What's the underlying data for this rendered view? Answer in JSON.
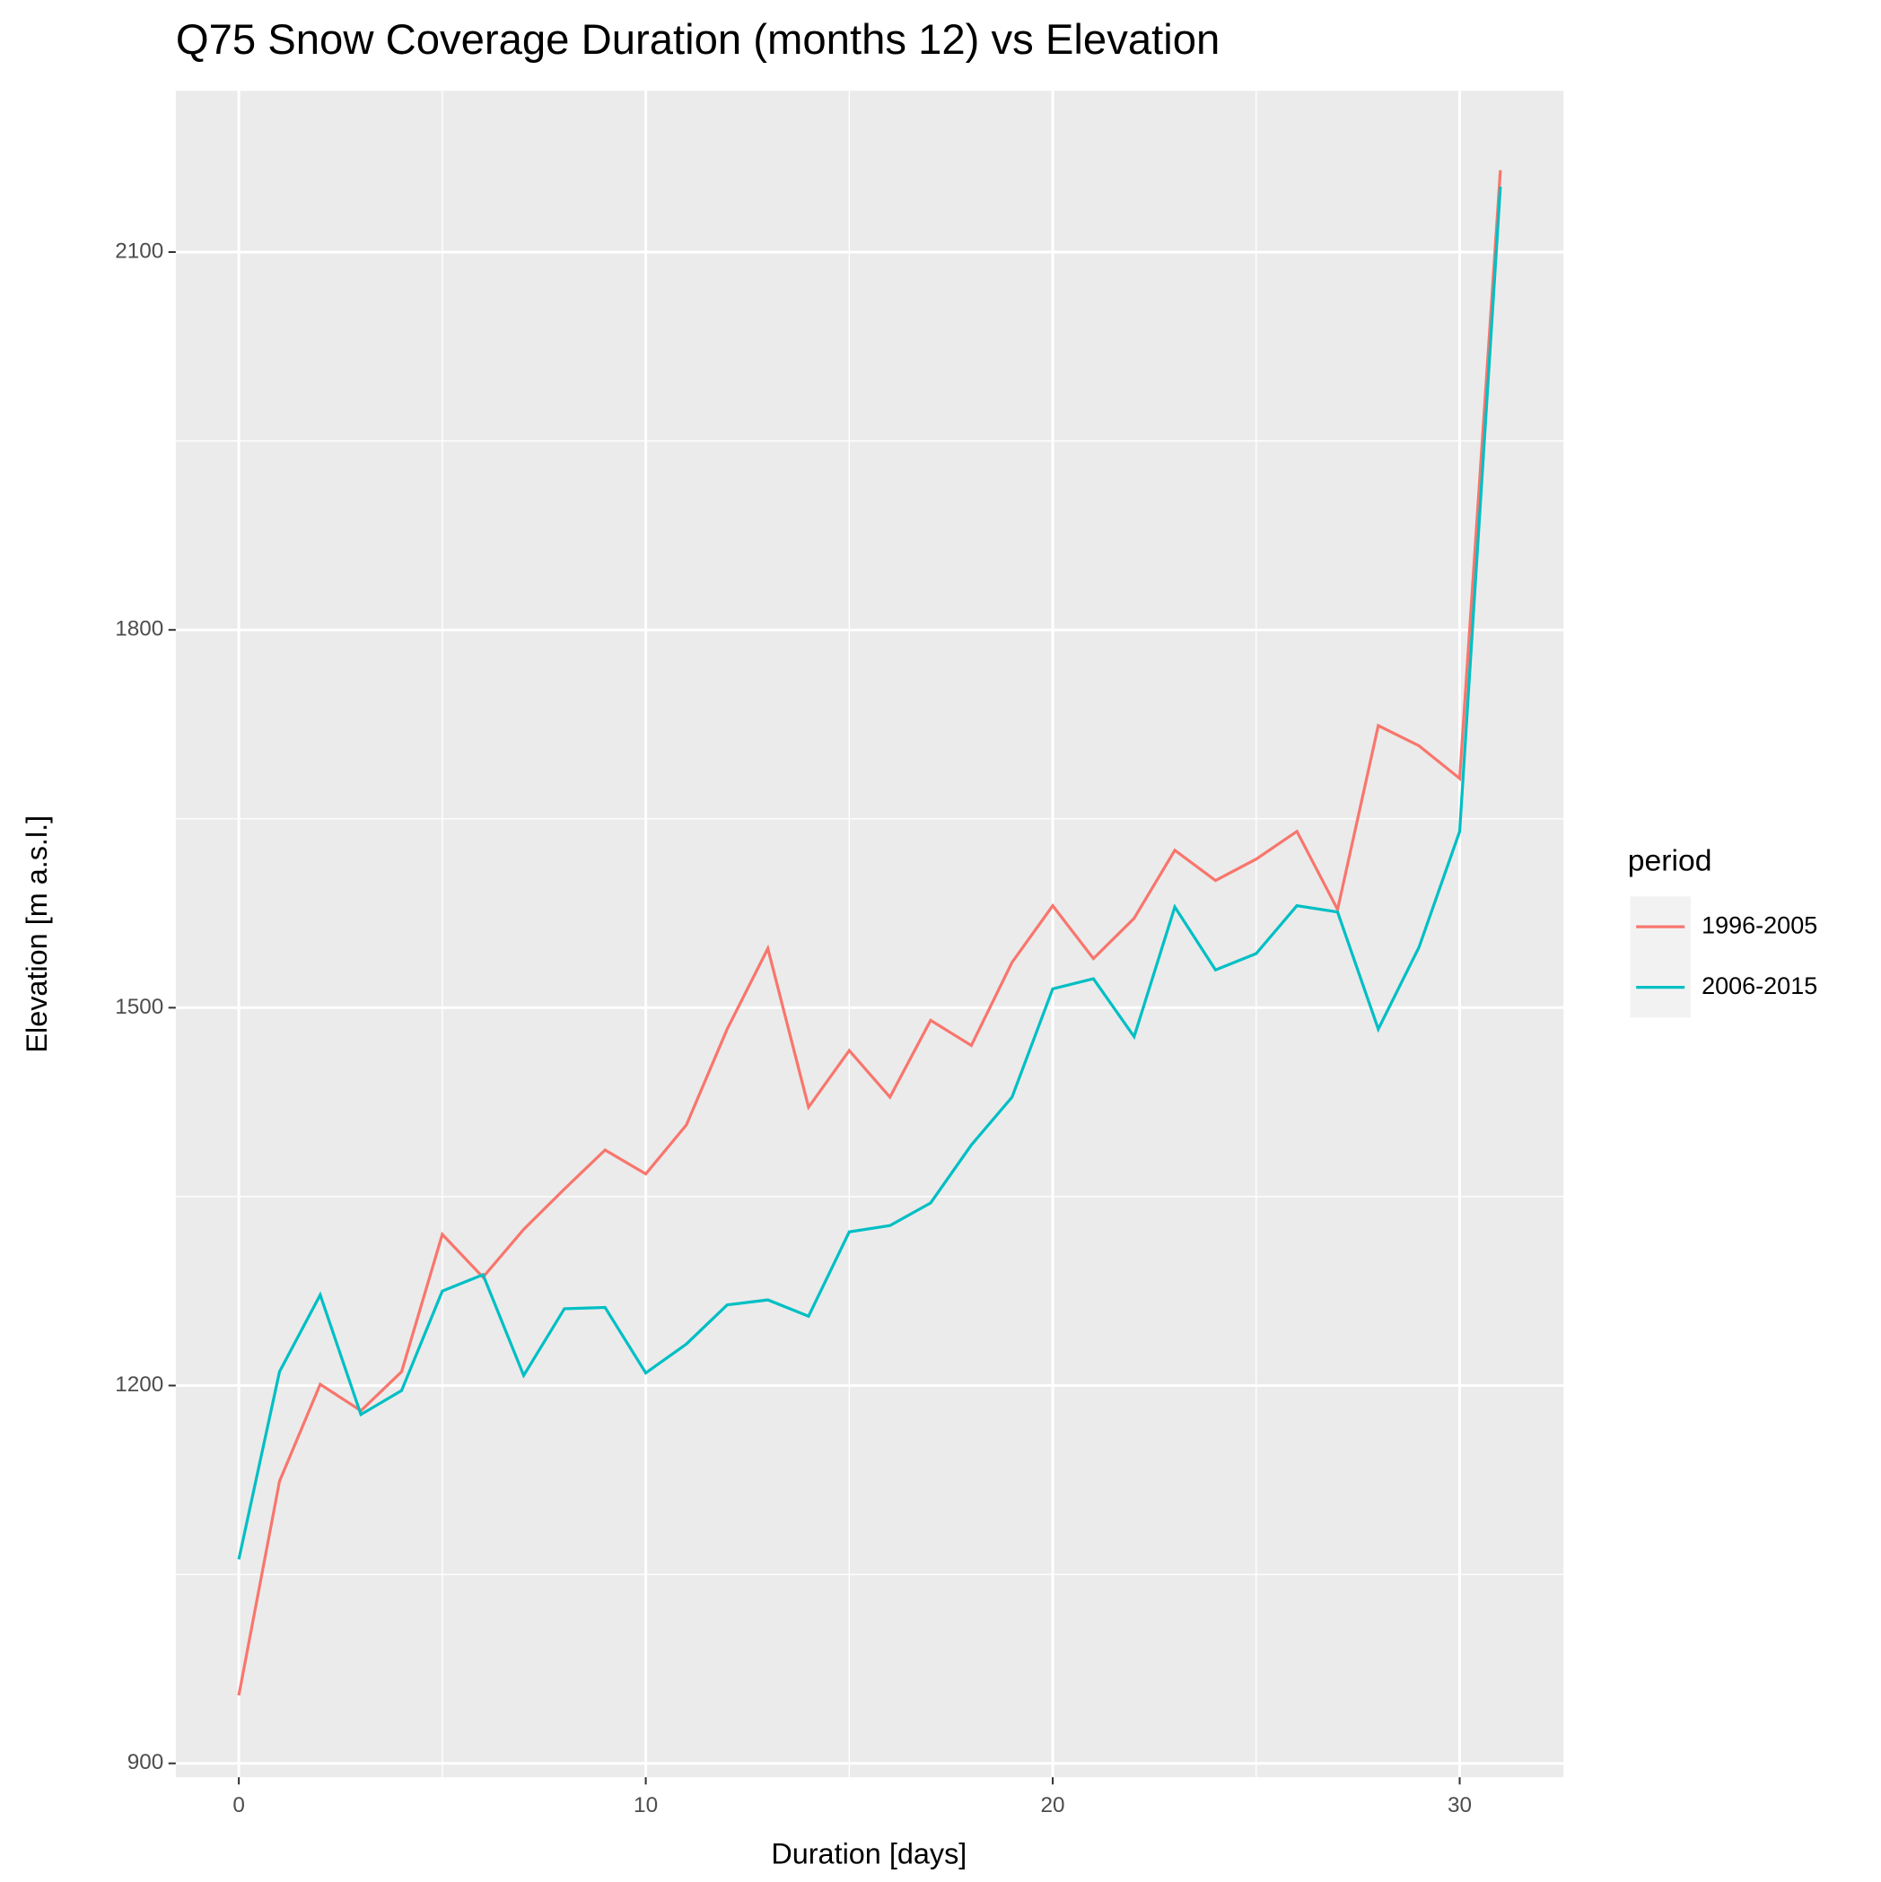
{
  "chart_data": {
    "type": "line",
    "title": "Q75 Snow Coverage Duration (months 12) vs Elevation",
    "x_label": "Duration [days]",
    "y_label": "Elevation [m a.s.l.]",
    "legend_title": "period",
    "legend_position": "right",
    "grid": true,
    "x": [
      0,
      1,
      2,
      3,
      4,
      5,
      6,
      7,
      8,
      9,
      10,
      11,
      12,
      13,
      14,
      15,
      16,
      17,
      18,
      19,
      20,
      21,
      22,
      23,
      24,
      25,
      26,
      27,
      28,
      29,
      30,
      31
    ],
    "series": [
      {
        "name": "1996-2005",
        "color": "#f8766d",
        "values": [
          954,
          1124,
          1201,
          1180,
          1211,
          1320,
          1286,
          1324,
          1356,
          1387,
          1368,
          1407,
          1483,
          1547,
          1421,
          1466,
          1429,
          1490,
          1470,
          1536,
          1581,
          1539,
          1571,
          1625,
          1601,
          1618,
          1640,
          1578,
          1724,
          1708,
          1682,
          2165
        ]
      },
      {
        "name": "2006-2015",
        "color": "#00bfc4",
        "values": [
          1062,
          1211,
          1272,
          1177,
          1196,
          1275,
          1288,
          1208,
          1261,
          1262,
          1210,
          1233,
          1264,
          1268,
          1255,
          1322,
          1327,
          1345,
          1391,
          1429,
          1515,
          1523,
          1477,
          1580,
          1530,
          1543,
          1581,
          1576,
          1483,
          1548,
          1640,
          2152
        ]
      }
    ],
    "xlim": [
      -1.55,
      32.55
    ],
    "xticks": [
      0,
      10,
      20,
      30
    ],
    "minor_xticks": [
      5,
      15,
      25
    ],
    "ylim": [
      889,
      2228
    ],
    "yticks": [
      900,
      1200,
      1500,
      1800,
      2100
    ],
    "minor_yticks": [
      1050,
      1350,
      1650,
      1950
    ]
  }
}
